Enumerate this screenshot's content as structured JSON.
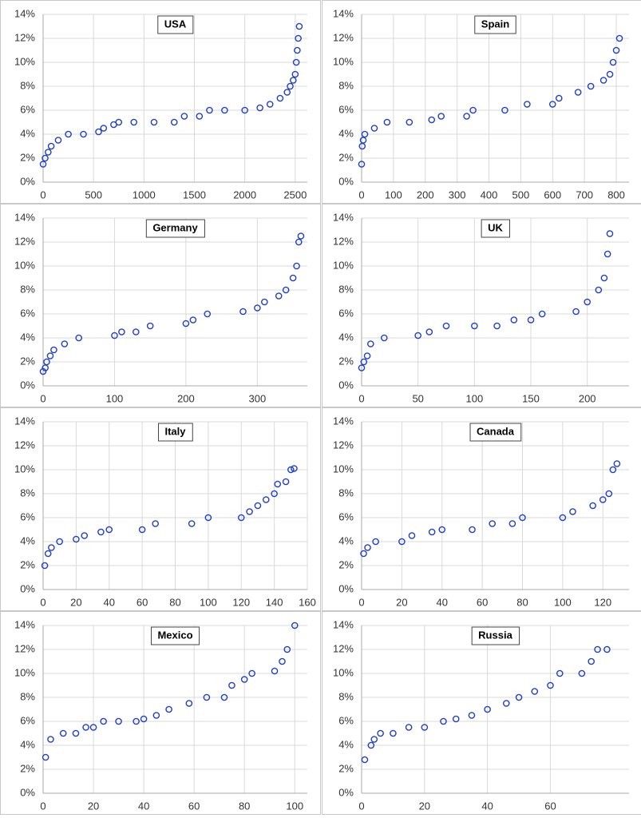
{
  "chart_data": [
    {
      "type": "scatter",
      "title": "USA",
      "color": "#1f3fc4",
      "grid": true,
      "x": [
        0,
        20,
        50,
        80,
        150,
        250,
        400,
        550,
        600,
        700,
        750,
        900,
        1100,
        1300,
        1400,
        1550,
        1650,
        1800,
        2000,
        2150,
        2250,
        2350,
        2420,
        2450,
        2480,
        2500,
        2510,
        2520,
        2530,
        2540
      ],
      "values": [
        1.5,
        2,
        2.5,
        3,
        3.5,
        4,
        4,
        4.2,
        4.5,
        4.8,
        5,
        5,
        5,
        5,
        5.5,
        5.5,
        6,
        6,
        6,
        6.2,
        6.5,
        7,
        7.5,
        8,
        8.5,
        9,
        10,
        11,
        12,
        13
      ],
      "xlim": [
        0,
        2620
      ],
      "xticks": [
        0,
        500,
        1000,
        1500,
        2000,
        2500
      ],
      "ylim": [
        0,
        14
      ],
      "yticks": [
        {
          "value": 0,
          "label": "0%"
        },
        {
          "value": 2,
          "label": "2%"
        },
        {
          "value": 4,
          "label": "4%"
        },
        {
          "value": 6,
          "label": "6%"
        },
        {
          "value": 8,
          "label": "8%"
        },
        {
          "value": 10,
          "label": "10%"
        },
        {
          "value": 12,
          "label": "12%"
        },
        {
          "value": 14,
          "label": "14%"
        }
      ]
    },
    {
      "type": "scatter",
      "title": "Spain",
      "color": "#1f3fc4",
      "grid": true,
      "x": [
        0,
        2,
        5,
        10,
        40,
        80,
        150,
        220,
        250,
        330,
        350,
        450,
        520,
        600,
        620,
        680,
        720,
        760,
        780,
        790,
        800,
        810
      ],
      "values": [
        1.5,
        3,
        3.5,
        4,
        4.5,
        5,
        5,
        5.2,
        5.5,
        5.5,
        6,
        6,
        6.5,
        6.5,
        7,
        7.5,
        8,
        8.5,
        9,
        10,
        11,
        12
      ],
      "xlim": [
        0,
        840
      ],
      "xticks": [
        0,
        100,
        200,
        300,
        400,
        500,
        600,
        700,
        800
      ],
      "ylim": [
        0,
        14
      ],
      "yticks": [
        {
          "value": 0,
          "label": "0%"
        },
        {
          "value": 2,
          "label": "2%"
        },
        {
          "value": 4,
          "label": "4%"
        },
        {
          "value": 6,
          "label": "6%"
        },
        {
          "value": 8,
          "label": "8%"
        },
        {
          "value": 10,
          "label": "10%"
        },
        {
          "value": 12,
          "label": "12%"
        },
        {
          "value": 14,
          "label": "14%"
        }
      ]
    },
    {
      "type": "scatter",
      "title": "Germany",
      "color": "#1f3fc4",
      "grid": true,
      "x": [
        0,
        3,
        5,
        10,
        15,
        30,
        50,
        100,
        110,
        130,
        150,
        200,
        210,
        230,
        280,
        300,
        310,
        330,
        340,
        350,
        355,
        358,
        361
      ],
      "values": [
        1.2,
        1.5,
        2,
        2.5,
        3,
        3.5,
        4,
        4.2,
        4.5,
        4.5,
        5,
        5.2,
        5.5,
        6,
        6.2,
        6.5,
        7,
        7.5,
        8,
        9,
        10,
        12,
        12.5
      ],
      "xlim": [
        0,
        370
      ],
      "xticks": [
        0,
        100,
        200,
        300
      ],
      "ylim": [
        0,
        14
      ],
      "yticks": [
        {
          "value": 0,
          "label": "0%"
        },
        {
          "value": 2,
          "label": "2%"
        },
        {
          "value": 4,
          "label": "4%"
        },
        {
          "value": 6,
          "label": "6%"
        },
        {
          "value": 8,
          "label": "8%"
        },
        {
          "value": 10,
          "label": "10%"
        },
        {
          "value": 12,
          "label": "12%"
        },
        {
          "value": 14,
          "label": "14%"
        }
      ]
    },
    {
      "type": "scatter",
      "title": "UK",
      "color": "#1f3fc4",
      "grid": true,
      "x": [
        0,
        2,
        5,
        8,
        20,
        50,
        60,
        75,
        100,
        120,
        135,
        150,
        160,
        190,
        200,
        210,
        215,
        218,
        220
      ],
      "values": [
        1.5,
        2,
        2.5,
        3.5,
        4,
        4.2,
        4.5,
        5,
        5,
        5,
        5.5,
        5.5,
        6,
        6.2,
        7,
        8,
        9,
        11,
        12.7
      ],
      "xlim": [
        0,
        237
      ],
      "xticks": [
        0,
        50,
        100,
        150,
        200
      ],
      "ylim": [
        0,
        14
      ],
      "yticks": [
        {
          "value": 0,
          "label": "0%"
        },
        {
          "value": 2,
          "label": "2%"
        },
        {
          "value": 4,
          "label": "4%"
        },
        {
          "value": 6,
          "label": "6%"
        },
        {
          "value": 8,
          "label": "8%"
        },
        {
          "value": 10,
          "label": "10%"
        },
        {
          "value": 12,
          "label": "12%"
        },
        {
          "value": 14,
          "label": "14%"
        }
      ]
    },
    {
      "type": "scatter",
      "title": "Italy",
      "color": "#1f3fc4",
      "grid": true,
      "x": [
        1,
        3,
        5,
        10,
        20,
        25,
        35,
        40,
        60,
        68,
        90,
        100,
        120,
        125,
        130,
        135,
        140,
        142,
        147,
        150,
        152
      ],
      "values": [
        2,
        3,
        3.5,
        4,
        4.2,
        4.5,
        4.8,
        5,
        5,
        5.5,
        5.5,
        6,
        6,
        6.5,
        7,
        7.5,
        8,
        8.8,
        9,
        10,
        10.1
      ],
      "xlim": [
        0,
        160
      ],
      "xticks": [
        0,
        20,
        40,
        60,
        80,
        100,
        120,
        140,
        160
      ],
      "ylim": [
        0,
        14
      ],
      "yticks": [
        {
          "value": 0,
          "label": "0%"
        },
        {
          "value": 2,
          "label": "2%"
        },
        {
          "value": 4,
          "label": "4%"
        },
        {
          "value": 6,
          "label": "6%"
        },
        {
          "value": 8,
          "label": "8%"
        },
        {
          "value": 10,
          "label": "10%"
        },
        {
          "value": 12,
          "label": "12%"
        },
        {
          "value": 14,
          "label": "14%"
        }
      ]
    },
    {
      "type": "scatter",
      "title": "Canada",
      "color": "#1f3fc4",
      "grid": true,
      "x": [
        1,
        3,
        7,
        20,
        25,
        35,
        40,
        55,
        65,
        75,
        80,
        100,
        105,
        115,
        120,
        123,
        125,
        127
      ],
      "values": [
        3,
        3.5,
        4,
        4,
        4.5,
        4.8,
        5,
        5,
        5.5,
        5.5,
        6,
        6,
        6.5,
        7,
        7.5,
        8,
        10,
        10.5
      ],
      "xlim": [
        0,
        133
      ],
      "xticks": [
        0,
        20,
        40,
        60,
        80,
        100,
        120
      ],
      "ylim": [
        0,
        14
      ],
      "yticks": [
        {
          "value": 0,
          "label": "0%"
        },
        {
          "value": 2,
          "label": "2%"
        },
        {
          "value": 4,
          "label": "4%"
        },
        {
          "value": 6,
          "label": "6%"
        },
        {
          "value": 8,
          "label": "8%"
        },
        {
          "value": 10,
          "label": "10%"
        },
        {
          "value": 12,
          "label": "12%"
        },
        {
          "value": 14,
          "label": "14%"
        }
      ]
    },
    {
      "type": "scatter",
      "title": "Mexico",
      "color": "#1f3fc4",
      "grid": true,
      "x": [
        1,
        3,
        8,
        13,
        17,
        20,
        24,
        30,
        37,
        40,
        45,
        50,
        58,
        65,
        72,
        75,
        80,
        83,
        92,
        95,
        97,
        100
      ],
      "values": [
        3,
        4.5,
        5,
        5,
        5.5,
        5.5,
        6,
        6,
        6,
        6.2,
        6.5,
        7,
        7.5,
        8,
        8,
        9,
        9.5,
        10,
        10.2,
        11,
        12,
        14
      ],
      "xlim": [
        0,
        105
      ],
      "xticks": [
        0,
        20,
        40,
        60,
        80,
        100
      ],
      "ylim": [
        0,
        14
      ],
      "yticks": [
        {
          "value": 0,
          "label": "0%"
        },
        {
          "value": 2,
          "label": "2%"
        },
        {
          "value": 4,
          "label": "4%"
        },
        {
          "value": 6,
          "label": "6%"
        },
        {
          "value": 8,
          "label": "8%"
        },
        {
          "value": 10,
          "label": "10%"
        },
        {
          "value": 12,
          "label": "12%"
        },
        {
          "value": 14,
          "label": "14%"
        }
      ]
    },
    {
      "type": "scatter",
      "title": "Russia",
      "color": "#1f3fc4",
      "grid": true,
      "x": [
        1,
        3,
        4,
        6,
        10,
        15,
        20,
        26,
        30,
        35,
        40,
        46,
        50,
        55,
        60,
        63,
        70,
        73,
        75,
        78
      ],
      "values": [
        2.8,
        4,
        4.5,
        5,
        5,
        5.5,
        5.5,
        6,
        6.2,
        6.5,
        7,
        7.5,
        8,
        8.5,
        9,
        10,
        10,
        11,
        12,
        12
      ],
      "xlim": [
        0,
        85
      ],
      "xticks": [
        0,
        20,
        40,
        60
      ],
      "ylim": [
        0,
        14
      ],
      "yticks": [
        {
          "value": 0,
          "label": "0%"
        },
        {
          "value": 2,
          "label": "2%"
        },
        {
          "value": 4,
          "label": "4%"
        },
        {
          "value": 6,
          "label": "6%"
        },
        {
          "value": 8,
          "label": "8%"
        },
        {
          "value": 10,
          "label": "10%"
        },
        {
          "value": 12,
          "label": "12%"
        },
        {
          "value": 14,
          "label": "14%"
        }
      ]
    }
  ]
}
